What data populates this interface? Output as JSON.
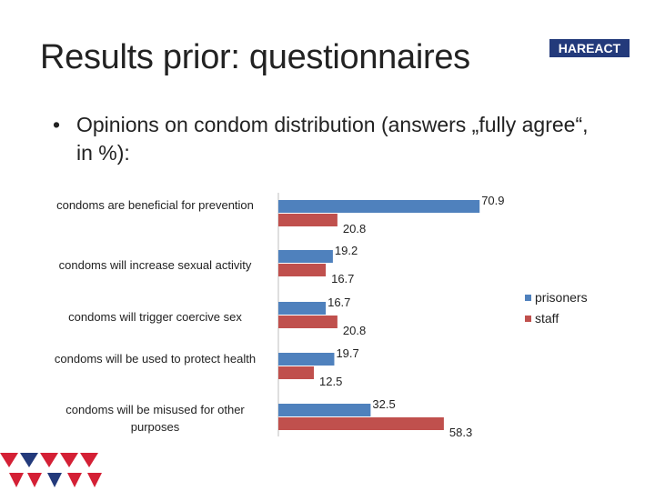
{
  "slide": {
    "title": "Results prior: questionnaires",
    "logo_text": "HAREACT",
    "bullet_marker": "•",
    "bullet_text": "Opinions on condom distribution (answers „fully agree“, in %):"
  },
  "colors": {
    "prisoners": "#4f81bd",
    "staff": "#c0504d",
    "logo_bg": "#233a7b",
    "triangle_red": "#d42035",
    "triangle_navy": "#233a7b"
  },
  "chart_data": {
    "type": "bar",
    "orientation": "horizontal",
    "title": "",
    "xlabel": "",
    "ylabel": "",
    "xlim": [
      0,
      100
    ],
    "grid": false,
    "legend_position": "right",
    "categories": [
      "condoms are beneficial for prevention",
      "condoms will increase sexual activity",
      "condoms will trigger coercive sex",
      "condoms will be used to protect health",
      "condoms will be misused for other purposes"
    ],
    "series": [
      {
        "name": "prisoners",
        "values": [
          70.9,
          19.2,
          16.7,
          19.7,
          32.5
        ],
        "labels": [
          "70.9",
          "19.2",
          "16.7",
          "19.7",
          "32.5"
        ]
      },
      {
        "name": "staff",
        "values": [
          20.8,
          16.7,
          20.8,
          12.5,
          58.3
        ],
        "labels": [
          "20.8",
          "16.7",
          "20.8",
          "12.5",
          "58.3"
        ]
      }
    ]
  }
}
